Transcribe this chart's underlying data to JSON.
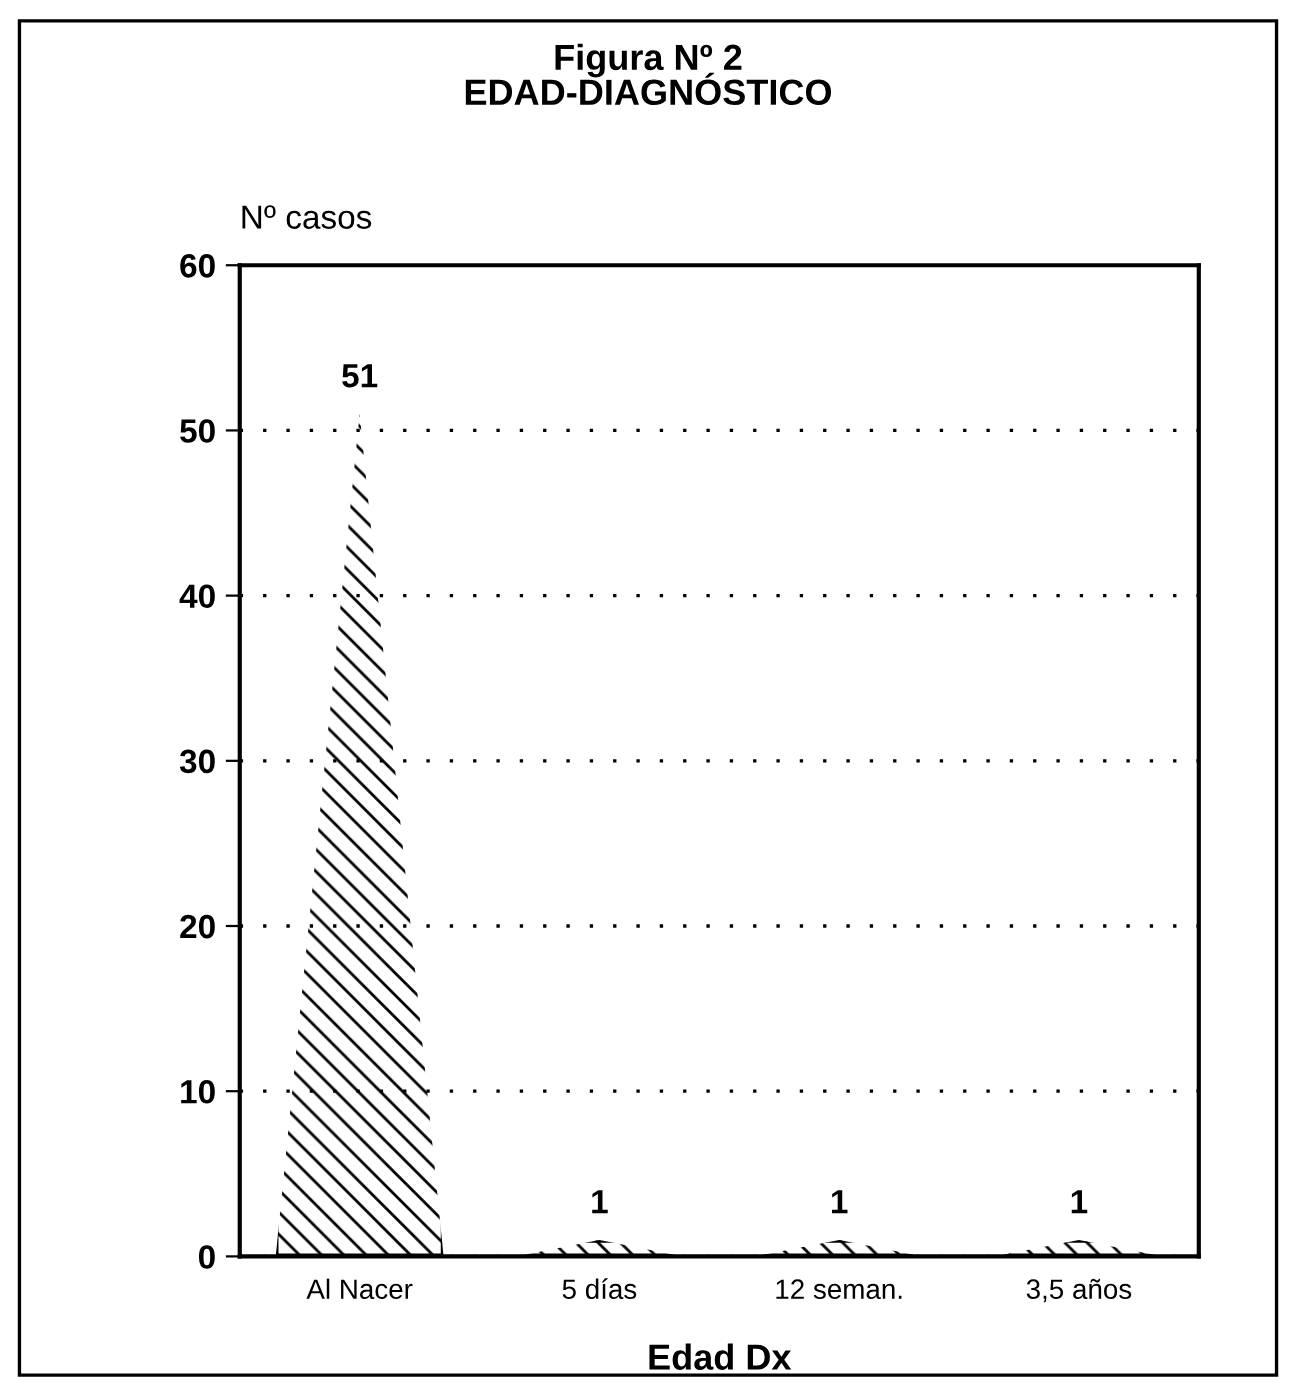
{
  "chart_data": {
    "type": "bar",
    "title": "Figura Nº 2",
    "subtitle": "EDAD-DIAGNÓSTICO",
    "ylabel": "Nº casos",
    "xlabel": "Edad Dx",
    "categories": [
      "Al Nacer",
      "5 días",
      "12 seman.",
      "3,5 años"
    ],
    "values": [
      51,
      1,
      1,
      1
    ],
    "color": "#000000",
    "ylim": [
      0,
      60
    ],
    "yticks": [
      0,
      10,
      20,
      30,
      40,
      50,
      60
    ],
    "grid": "y",
    "line_style": "dotted",
    "data_labels": true,
    "legend": false
  }
}
